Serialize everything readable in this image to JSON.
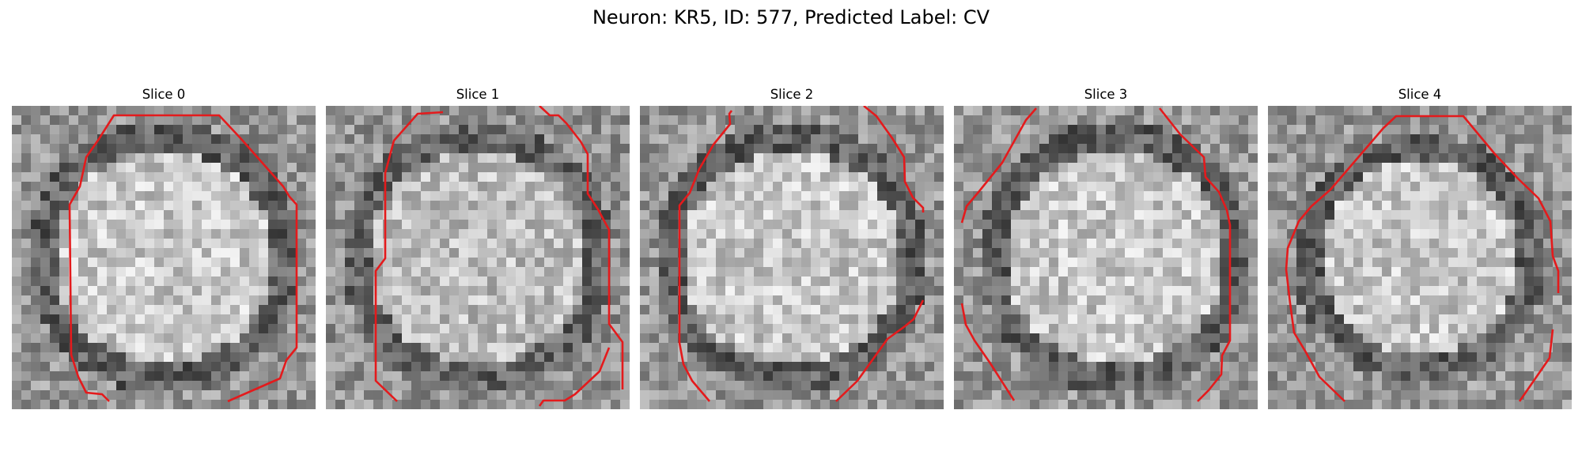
{
  "figure": {
    "title": "Neuron: KR5, ID: 577, Predicted Label: CV"
  },
  "panels": [
    {
      "title": "Slice 0",
      "outline_color": "#e41a1c",
      "grid_size": 32,
      "seed": 11
    },
    {
      "title": "Slice 1",
      "outline_color": "#e41a1c",
      "grid_size": 32,
      "seed": 23
    },
    {
      "title": "Slice 2",
      "outline_color": "#e41a1c",
      "grid_size": 32,
      "seed": 37
    },
    {
      "title": "Slice 3",
      "outline_color": "#e41a1c",
      "grid_size": 32,
      "seed": 41
    },
    {
      "title": "Slice 4",
      "outline_color": "#e41a1c",
      "grid_size": 32,
      "seed": 53
    }
  ]
}
